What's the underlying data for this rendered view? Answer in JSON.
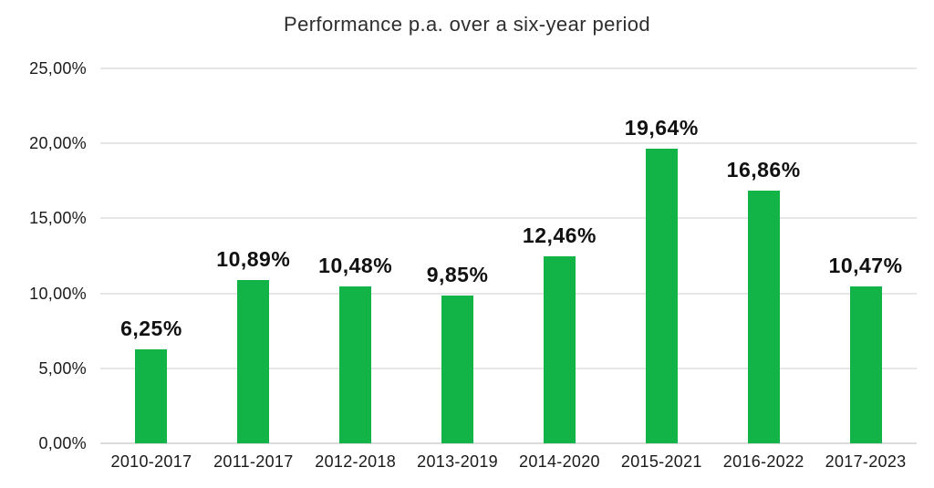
{
  "chart_data": {
    "type": "bar",
    "title": "Performance p.a. over a six-year period",
    "categories": [
      "2010-2017",
      "2011-2017",
      "2012-2018",
      "2013-2019",
      "2014-2020",
      "2015-2021",
      "2016-2022",
      "2017-2023"
    ],
    "values": [
      6.25,
      10.89,
      10.48,
      9.85,
      12.46,
      19.64,
      16.86,
      10.47
    ],
    "value_labels": [
      "6,25%",
      "10,89%",
      "10,48%",
      "9,85%",
      "12,46%",
      "19,64%",
      "16,86%",
      "10,47%"
    ],
    "yticks": [
      {
        "label": "25,00%",
        "value": 25
      },
      {
        "label": "20,00%",
        "value": 20
      },
      {
        "label": "15,00%",
        "value": 15
      },
      {
        "label": "10,00%",
        "value": 10
      },
      {
        "label": "5,00%",
        "value": 5
      },
      {
        "label": "0,00%",
        "value": 0
      }
    ],
    "ylim": [
      0,
      25
    ],
    "xlabel": "",
    "ylabel": "",
    "grid": true,
    "legend": "none",
    "colors": {
      "bar": "#12b347",
      "gridline": "#e6e6e6",
      "axis_line": "#dcdcdc",
      "value_label_text": "#111111",
      "tick_text": "#1a1a1a",
      "title_text": "#2e2e2e"
    }
  }
}
